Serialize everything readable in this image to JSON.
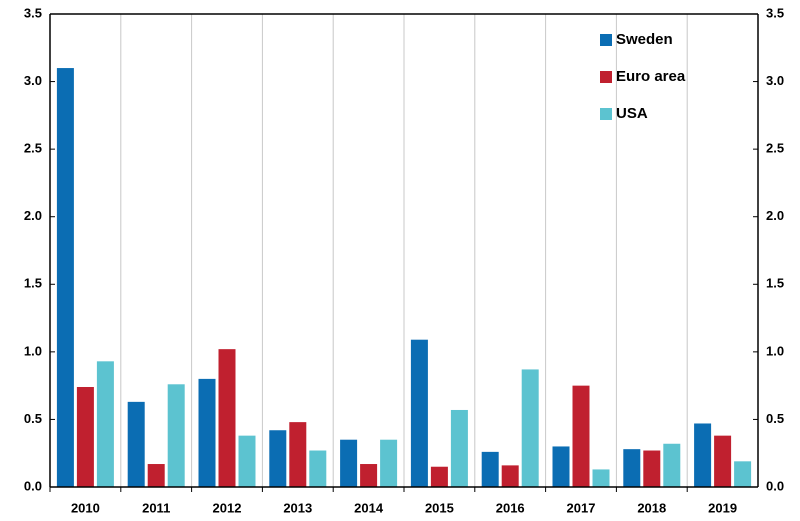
{
  "chart_data": {
    "type": "bar",
    "categories": [
      "2010",
      "2011",
      "2012",
      "2013",
      "2014",
      "2015",
      "2016",
      "2017",
      "2018",
      "2019"
    ],
    "series": [
      {
        "name": "Sweden",
        "color": "#0b6db3",
        "values": [
          3.1,
          0.63,
          0.8,
          0.42,
          0.35,
          1.09,
          0.26,
          0.3,
          0.28,
          0.47
        ]
      },
      {
        "name": "Euro area",
        "color": "#c0202f",
        "values": [
          0.74,
          0.17,
          1.02,
          0.48,
          0.17,
          0.15,
          0.16,
          0.75,
          0.27,
          0.38
        ]
      },
      {
        "name": "USA",
        "color": "#5cc3d0",
        "values": [
          0.93,
          0.76,
          0.38,
          0.27,
          0.35,
          0.57,
          0.87,
          0.13,
          0.32,
          0.19
        ]
      }
    ],
    "ylim": [
      0,
      3.5
    ],
    "yticks": [
      {
        "value": 0,
        "label": "0.0"
      },
      0.5,
      {
        "value": 1,
        "label": "1.0"
      },
      1.5,
      {
        "value": 2,
        "label": "2.0"
      },
      2.5,
      {
        "value": 3,
        "label": "3.0"
      },
      3.5
    ],
    "y2lim": [
      0,
      3.5
    ],
    "y2ticks": [
      {
        "value": 0,
        "label": "0.0"
      },
      0.5,
      {
        "value": 1,
        "label": "1.0"
      },
      1.5,
      {
        "value": 2,
        "label": "2.0"
      },
      2.5,
      {
        "value": 3,
        "label": "3.0"
      },
      3.5
    ],
    "legend": "top-right"
  }
}
